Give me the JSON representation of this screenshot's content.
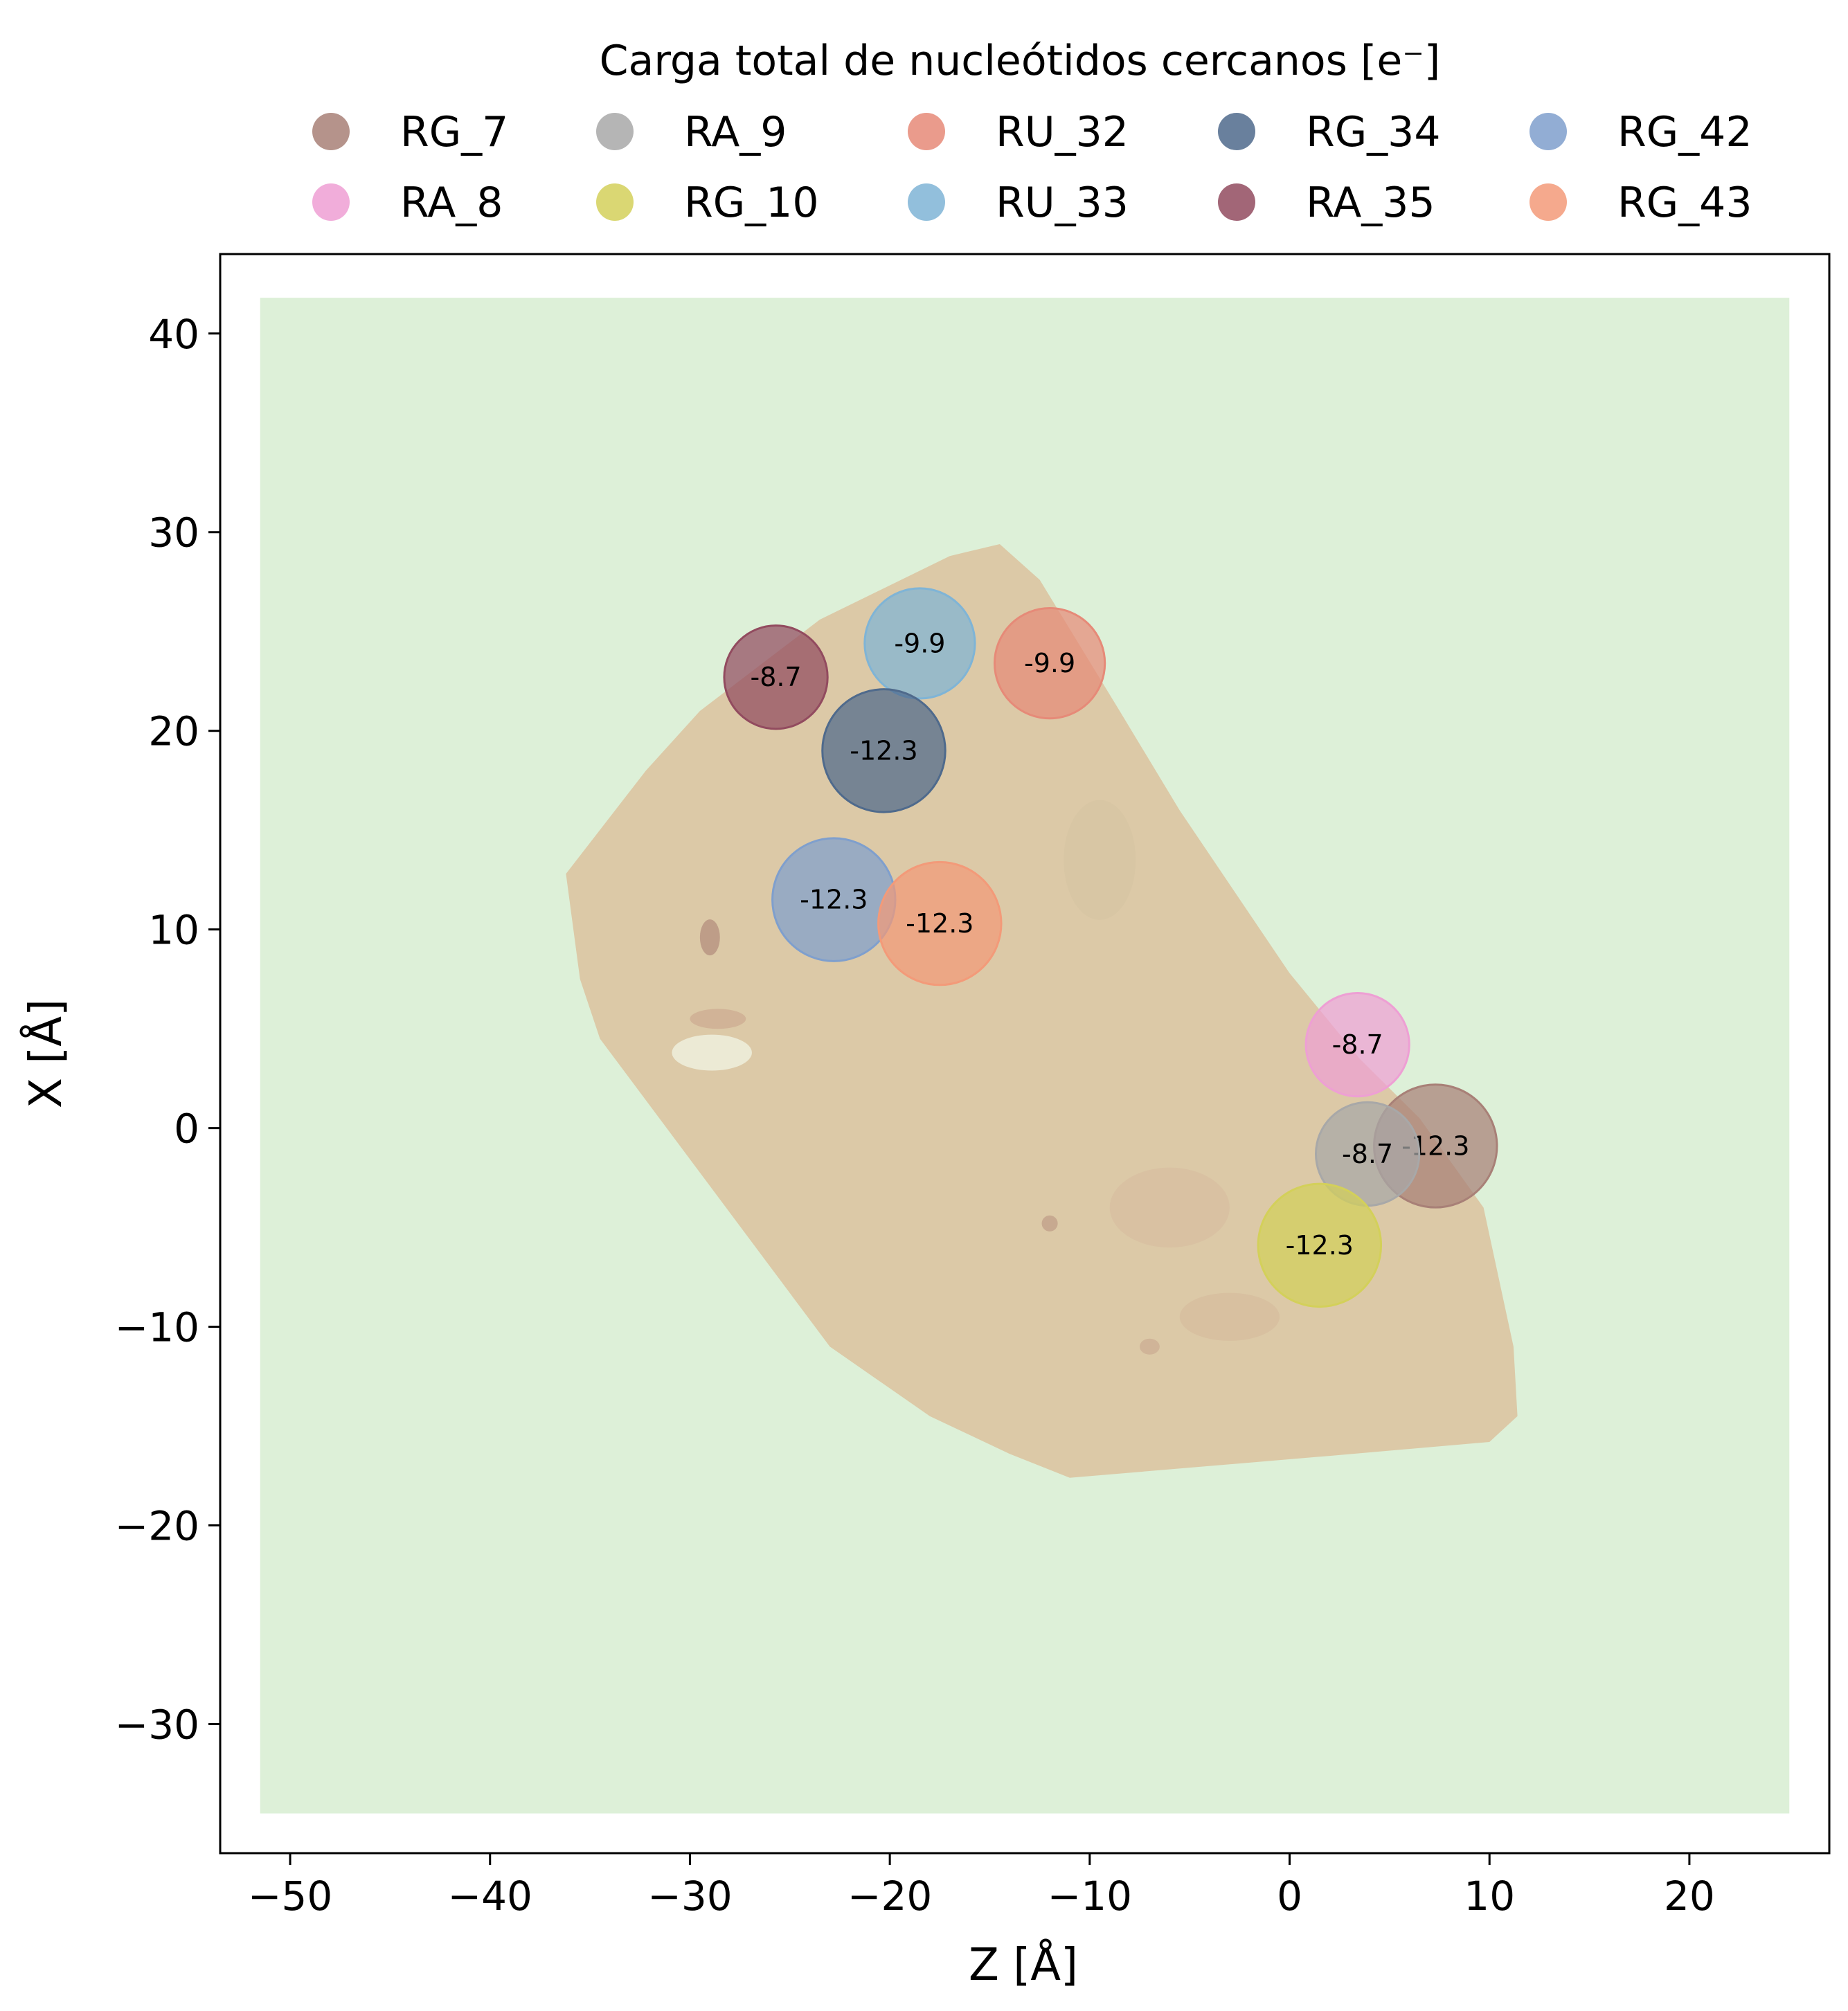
{
  "chart_data": {
    "type": "scatter",
    "title": "Carga total de nucleótidos cercanos [e⁻]",
    "xlabel": "Z [Å]",
    "ylabel": "X [Å]",
    "xlim": [
      -53.5,
      27
    ],
    "ylim": [
      -36.5,
      44
    ],
    "xticks": [
      -50,
      -40,
      -30,
      -20,
      -10,
      0,
      10,
      20
    ],
    "yticks": [
      40,
      30,
      20,
      10,
      0,
      -10,
      -20,
      -30
    ],
    "xtick_labels": [
      "−50",
      "−40",
      "−30",
      "−20",
      "−10",
      "0",
      "10",
      "20"
    ],
    "ytick_labels": [
      "40",
      "30",
      "20",
      "10",
      "0",
      "−10",
      "−20",
      "−30"
    ],
    "grid": false,
    "legend_placement": "top-center",
    "background_region": {
      "x": [
        -51.5,
        25
      ],
      "y": [
        -34.5,
        41.8
      ],
      "color": "#ddf0d8"
    },
    "surface_color": "#dcc9a7",
    "surface_polygon": [
      [
        -36.2,
        12.8
      ],
      [
        -32.2,
        18.0
      ],
      [
        -29.5,
        21.0
      ],
      [
        -23.5,
        25.6
      ],
      [
        -17.0,
        28.8
      ],
      [
        -14.5,
        29.4
      ],
      [
        -12.5,
        27.6
      ],
      [
        -8.5,
        21.0
      ],
      [
        -5.5,
        16.0
      ],
      [
        0.0,
        7.8
      ],
      [
        3.5,
        3.5
      ],
      [
        6.5,
        0.5
      ],
      [
        9.7,
        -4.0
      ],
      [
        11.2,
        -11.0
      ],
      [
        11.4,
        -14.5
      ],
      [
        10.0,
        -15.8
      ],
      [
        2.0,
        -16.5
      ],
      [
        -11.0,
        -17.6
      ],
      [
        -14.0,
        -16.4
      ],
      [
        -18.0,
        -14.5
      ],
      [
        -23.0,
        -11.0
      ],
      [
        -34.5,
        4.5
      ],
      [
        -35.5,
        7.5
      ]
    ],
    "series": [
      {
        "name": "RG_7",
        "color": "#a88077",
        "x": 7.3,
        "y": -0.9,
        "charge": -12.3,
        "label": "-12.3"
      },
      {
        "name": "RA_8",
        "color": "#ee9fd4",
        "x": 3.4,
        "y": 4.2,
        "charge": -8.7,
        "label": "-8.7"
      },
      {
        "name": "RA_9",
        "color": "#a8a8a8",
        "x": 3.9,
        "y": -1.3,
        "charge": -8.7,
        "label": "-8.7"
      },
      {
        "name": "RG_10",
        "color": "#d3d05a",
        "x": 1.5,
        "y": -5.9,
        "charge": -12.3,
        "label": "-12.3"
      },
      {
        "name": "RU_32",
        "color": "#e68a78",
        "x": -12.0,
        "y": 23.4,
        "charge": -9.9,
        "label": "-9.9"
      },
      {
        "name": "RU_33",
        "color": "#7fb4d6",
        "x": -18.5,
        "y": 24.4,
        "charge": -9.9,
        "label": "-9.9"
      },
      {
        "name": "RG_34",
        "color": "#4f6a8c",
        "x": -20.3,
        "y": 19.0,
        "charge": -12.3,
        "label": "-12.3"
      },
      {
        "name": "RA_35",
        "color": "#924b5f",
        "x": -25.7,
        "y": 22.7,
        "charge": -8.7,
        "label": "-8.7"
      },
      {
        "name": "RG_42",
        "color": "#7f9fcd",
        "x": -22.8,
        "y": 11.5,
        "charge": -12.3,
        "label": "-12.3"
      },
      {
        "name": "RG_43",
        "color": "#f39a79",
        "x": -17.5,
        "y": 10.3,
        "charge": -12.3,
        "label": "-12.3"
      }
    ]
  }
}
